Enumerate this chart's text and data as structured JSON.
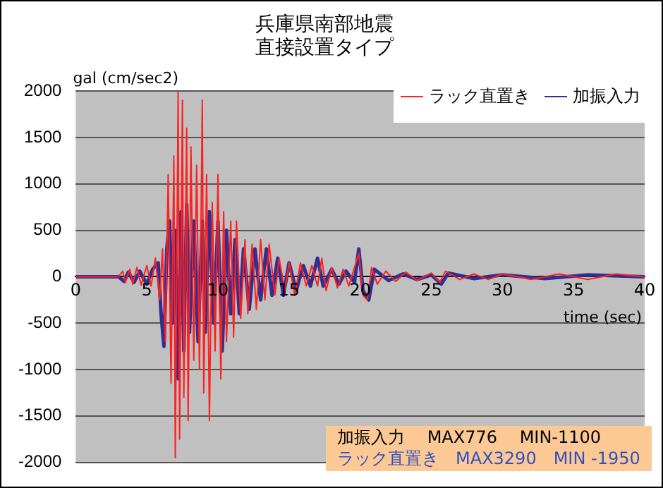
{
  "chart_data": {
    "type": "line",
    "title": "兵庫県南部地震",
    "subtitle": "直接設置タイプ",
    "xlabel": "time (sec)",
    "ylabel": "gal (cm/sec2)",
    "xlim": [
      0,
      40
    ],
    "xticks": [
      0,
      5,
      10,
      15,
      20,
      25,
      30,
      35,
      40
    ],
    "ylim": [
      -2000,
      2000
    ],
    "yticks": [
      -2000,
      -1500,
      -1000,
      -500,
      0,
      500,
      1000,
      1500,
      2000
    ],
    "grid": "y",
    "legend": "top right",
    "marker": "none",
    "line_style": "solid",
    "annotations": [
      "加振入力　 MAX776　 MIN-1100",
      "ラック直置き　MAX3290　MIN -1950"
    ],
    "series": [
      {
        "name": "ラック直置き",
        "color": "#ff2020",
        "x": [
          0,
          3,
          3.3,
          3.5,
          3.8,
          4.0,
          4.3,
          4.6,
          5.0,
          5.3,
          5.6,
          5.9,
          6.1,
          6.3,
          6.5,
          6.7,
          6.9,
          7.0,
          7.2,
          7.3,
          7.5,
          7.6,
          7.8,
          7.9,
          8.1,
          8.3,
          8.5,
          8.7,
          8.9,
          9.0,
          9.2,
          9.4,
          9.6,
          9.8,
          10.0,
          10.2,
          10.4,
          10.6,
          10.9,
          11.1,
          11.3,
          11.6,
          11.9,
          12.1,
          12.4,
          12.7,
          13.0,
          13.3,
          13.6,
          14.0,
          14.3,
          14.7,
          15.0,
          15.4,
          15.8,
          16.2,
          16.6,
          17.0,
          17.3,
          17.6,
          18.0,
          18.4,
          18.8,
          19.2,
          19.6,
          19.9,
          20.2,
          20.5,
          20.8,
          21.2,
          21.8,
          22.5,
          23.2,
          24.0,
          25.0,
          25.6,
          26.0,
          27,
          28,
          29,
          30,
          32,
          34,
          36,
          38,
          40
        ],
        "values": [
          0,
          0,
          60,
          -60,
          80,
          -80,
          100,
          -90,
          120,
          -100,
          200,
          -250,
          300,
          -700,
          1100,
          -1150,
          1300,
          -1950,
          2000,
          -1750,
          1900,
          -1300,
          1600,
          -1550,
          1400,
          -900,
          1200,
          -1000,
          1900,
          -1250,
          1100,
          -1550,
          800,
          -800,
          1100,
          -1100,
          700,
          -700,
          600,
          -650,
          600,
          -450,
          400,
          -400,
          350,
          -350,
          400,
          -250,
          350,
          -200,
          200,
          -150,
          150,
          -200,
          150,
          -100,
          120,
          -100,
          200,
          -150,
          100,
          -120,
          80,
          -100,
          100,
          250,
          -200,
          -250,
          100,
          -80,
          60,
          -50,
          50,
          -40,
          40,
          -60,
          60,
          -30,
          30,
          -30,
          30,
          -30,
          30,
          -30,
          30,
          0
        ]
      },
      {
        "name": "加振入力",
        "color": "#303090",
        "x": [
          0,
          3,
          3.4,
          3.7,
          4.1,
          4.5,
          5.0,
          5.4,
          5.8,
          6.0,
          6.2,
          6.4,
          6.6,
          6.8,
          7.0,
          7.2,
          7.4,
          7.6,
          7.8,
          8.0,
          8.3,
          8.6,
          8.9,
          9.1,
          9.4,
          9.7,
          10.0,
          10.3,
          10.6,
          10.9,
          11.2,
          11.5,
          11.8,
          12.2,
          12.6,
          13.0,
          13.4,
          13.8,
          14.2,
          14.6,
          15.0,
          15.5,
          16,
          16.5,
          17,
          17.4,
          18,
          18.5,
          19,
          19.6,
          19.9,
          20.2,
          20.6,
          21,
          22,
          23,
          24,
          25,
          25.7,
          26.2,
          28,
          30,
          33,
          36,
          40
        ],
        "values": [
          0,
          0,
          -50,
          50,
          -60,
          60,
          -80,
          80,
          150,
          -400,
          -750,
          300,
          600,
          -500,
          500,
          -1100,
          700,
          -800,
          780,
          -600,
          600,
          -700,
          600,
          -600,
          700,
          -500,
          600,
          -800,
          500,
          -400,
          400,
          -400,
          300,
          -350,
          300,
          -250,
          300,
          -200,
          200,
          -200,
          150,
          -150,
          120,
          -100,
          200,
          -100,
          80,
          -80,
          60,
          -60,
          300,
          -150,
          -250,
          80,
          -40,
          30,
          -30,
          20,
          -80,
          40,
          -20,
          20,
          -20,
          20,
          0
        ]
      }
    ]
  }
}
